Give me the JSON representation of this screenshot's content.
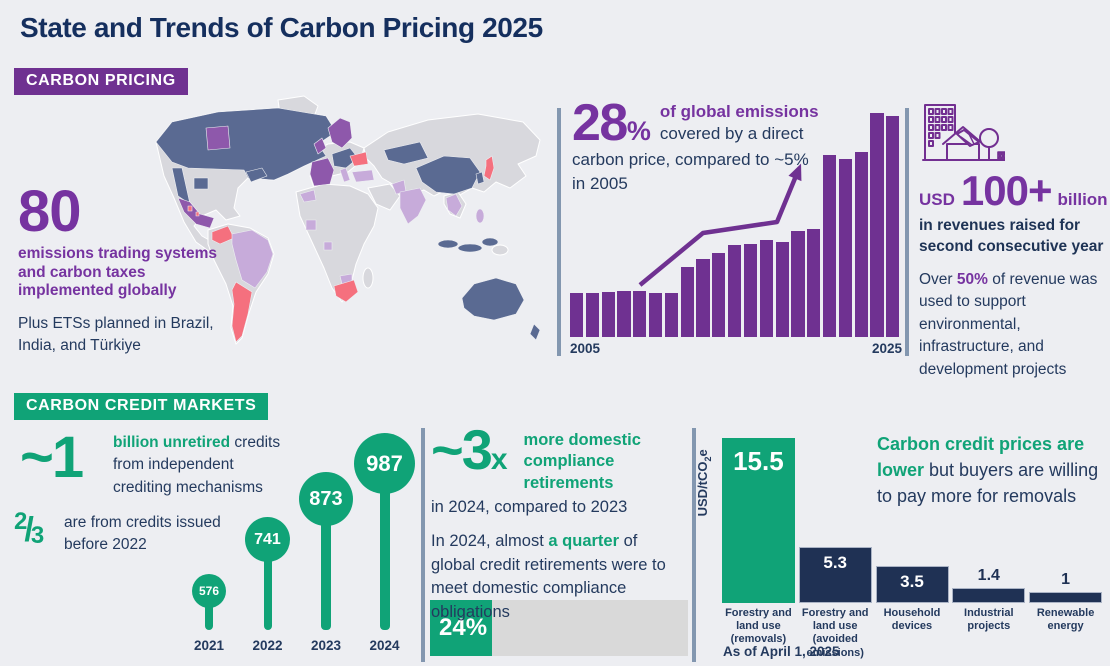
{
  "header": {
    "title": "State and Trends of Carbon Pricing 2025"
  },
  "colors": {
    "background": "#EDEEF2",
    "title_navy": "#152F5E",
    "body_navy": "#243A5E",
    "purple": "#6F3191",
    "purple_bright": "#7633A0",
    "green": "#10A377",
    "divider_slate": "#8397B0",
    "price_bar_navy": "#1F3154",
    "progress_gray": "#D9D9D9",
    "map_palette": {
      "gray": "#D8D8DD",
      "navy": "#5A6A92",
      "purple": "#8E58AB",
      "lavender": "#C7ABDA",
      "pink": "#F5707E"
    }
  },
  "carbon_pricing": {
    "badge": "CARBON PRICING",
    "stat": {
      "number": "80",
      "label": "emissions trading systems and carbon taxes implemented globally",
      "note": "Plus ETSs planned in Brazil, India, and Türkiye"
    },
    "coverage": {
      "pct_num": "28",
      "pct_sym": "%",
      "l1": "of global emissions",
      "l2": "covered by a direct",
      "l3": "carbon price, compared to ~5%",
      "l4": "in 2005"
    },
    "revenue": {
      "currency": "USD",
      "amount": "100+",
      "unit": "billion",
      "bold1": "in revenues raised for",
      "bold2": "second consecutive year",
      "p_pre": "Over ",
      "p_hl": "50%",
      "p_post": " of revenue was used to support environmental, infrastructure, and development projects"
    }
  },
  "credit_markets": {
    "badge": "CARBON CREDIT MARKETS",
    "unretired": {
      "number": "~1",
      "hl": "billion unretired",
      "rest": " credits from independent crediting mechanisms"
    },
    "fraction": {
      "num": "2",
      "slash": "/",
      "den": "3",
      "text": "are from credits issued before 2022"
    },
    "retirements": {
      "number": "~3",
      "sub": "x",
      "hl": "more domestic compliance retirements",
      "line": "in 2024, compared to 2023",
      "p_pre": "In 2024, almost ",
      "p_hl": "a quarter",
      "p_post": " of global credit retirements were to meet domestic compliance obligations"
    },
    "prices": {
      "headline_hl": "Carbon credit prices are lower",
      "headline_rest": " but buyers are willing to pay more for removals",
      "ylabel_pre": "USD/tCO",
      "ylabel_sub": "2",
      "ylabel_post": "e",
      "asof": "As of April 1, 2025"
    }
  },
  "chart_data": [
    {
      "id": "emissions-coverage",
      "type": "bar",
      "title": "Share of global emissions covered by a direct carbon price",
      "x": [
        2005,
        2006,
        2007,
        2008,
        2009,
        2010,
        2011,
        2012,
        2013,
        2014,
        2015,
        2016,
        2017,
        2018,
        2019,
        2020,
        2021,
        2022,
        2023,
        2024,
        2025
      ],
      "values": [
        5.5,
        5.5,
        5.6,
        5.7,
        5.7,
        5.5,
        5.5,
        8.8,
        9.8,
        10.5,
        11.5,
        11.6,
        12.1,
        11.9,
        13.2,
        13.5,
        22.7,
        22.3,
        23.1,
        28,
        27.6
      ],
      "xticks": [
        "2005",
        "2025"
      ],
      "ylim": [
        0,
        28
      ],
      "bar_color": "#6F3191",
      "annotation": "growth arrow from ~5% in 2005 toward 28%"
    },
    {
      "id": "unretired-credits",
      "type": "lollipop",
      "categories": [
        "2021",
        "2022",
        "2023",
        "2024"
      ],
      "values": [
        576,
        741,
        873,
        987
      ],
      "color": "#10A377"
    },
    {
      "id": "credit-prices",
      "type": "bar",
      "categories": [
        "Forestry and land use (removals)",
        "Forestry and land use (avoided emissions)",
        "Household devices",
        "Industrial projects",
        "Renewable energy"
      ],
      "values": [
        15.5,
        5.3,
        3.5,
        1.4,
        1
      ],
      "labels": [
        "15.5",
        "5.3",
        "3.5",
        "1.4",
        "1"
      ],
      "ylabel": "USD/tCO2e",
      "bar_colors": [
        "#10A377",
        "#1F3154",
        "#1F3154",
        "#1F3154",
        "#1F3154"
      ]
    },
    {
      "id": "domestic-compliance-share",
      "type": "progress",
      "value": 24,
      "max": 100,
      "label": "24%"
    }
  ]
}
